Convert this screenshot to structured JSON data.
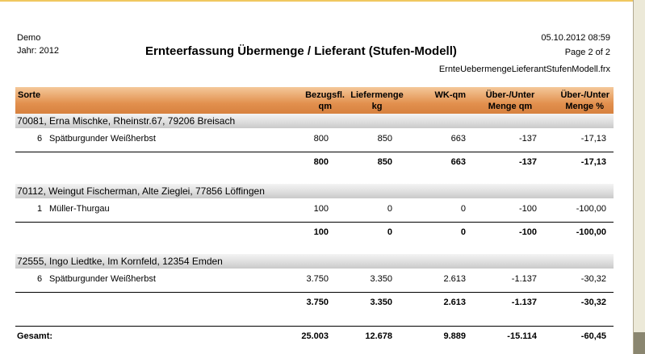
{
  "report": {
    "company": "Demo",
    "year_label": "Jahr: 2012",
    "title": "Ernteerfassung Übermenge / Lieferant (Stufen-Modell)",
    "datetime": "05.10.2012  08:59",
    "page": "Page 2 of 2",
    "filename": "ErnteUebermengeLieferantStufenModell.frx"
  },
  "columns": {
    "sorte": "Sorte",
    "bezug_1": "Bezugsfl.",
    "bezug_2": "qm",
    "liefer_1": "Liefermenge",
    "liefer_2": "kg",
    "wk": "WK-qm",
    "ueber_qm_1": "Über-/Unter",
    "ueber_qm_2": "Menge qm",
    "ueber_pct_1": "Über-/Unter",
    "ueber_pct_2": "Menge %"
  },
  "groups": [
    {
      "header": "70081, Erna Mischke, Rheinstr.67, 79206 Breisach",
      "row": {
        "nr": "6",
        "sorte": "Spätburgunder Weißherbst",
        "bezug": "800",
        "liefer": "850",
        "wk": "663",
        "ueber_qm": "-137",
        "ueber_pct": "-17,13"
      },
      "sum": {
        "bezug": "800",
        "liefer": "850",
        "wk": "663",
        "ueber_qm": "-137",
        "ueber_pct": "-17,13"
      }
    },
    {
      "header": "70112, Weingut Fischerman, Alte Zieglei, 77856 Löffingen",
      "row": {
        "nr": "1",
        "sorte": "Müller-Thurgau",
        "bezug": "100",
        "liefer": "0",
        "wk": "0",
        "ueber_qm": "-100",
        "ueber_pct": "-100,00"
      },
      "sum": {
        "bezug": "100",
        "liefer": "0",
        "wk": "0",
        "ueber_qm": "-100",
        "ueber_pct": "-100,00"
      }
    },
    {
      "header": "72555, Ingo Liedtke, Im Kornfeld, 12354 Emden",
      "row": {
        "nr": "6",
        "sorte": "Spätburgunder Weißherbst",
        "bezug": "3.750",
        "liefer": "3.350",
        "wk": "2.613",
        "ueber_qm": "-1.137",
        "ueber_pct": "-30,32"
      },
      "sum": {
        "bezug": "3.750",
        "liefer": "3.350",
        "wk": "2.613",
        "ueber_qm": "-1.137",
        "ueber_pct": "-30,32"
      }
    }
  ],
  "total": {
    "label": "Gesamt:",
    "bezug": "25.003",
    "liefer": "12.678",
    "wk": "9.889",
    "ueber_qm": "-15.114",
    "ueber_pct": "-60,45"
  }
}
